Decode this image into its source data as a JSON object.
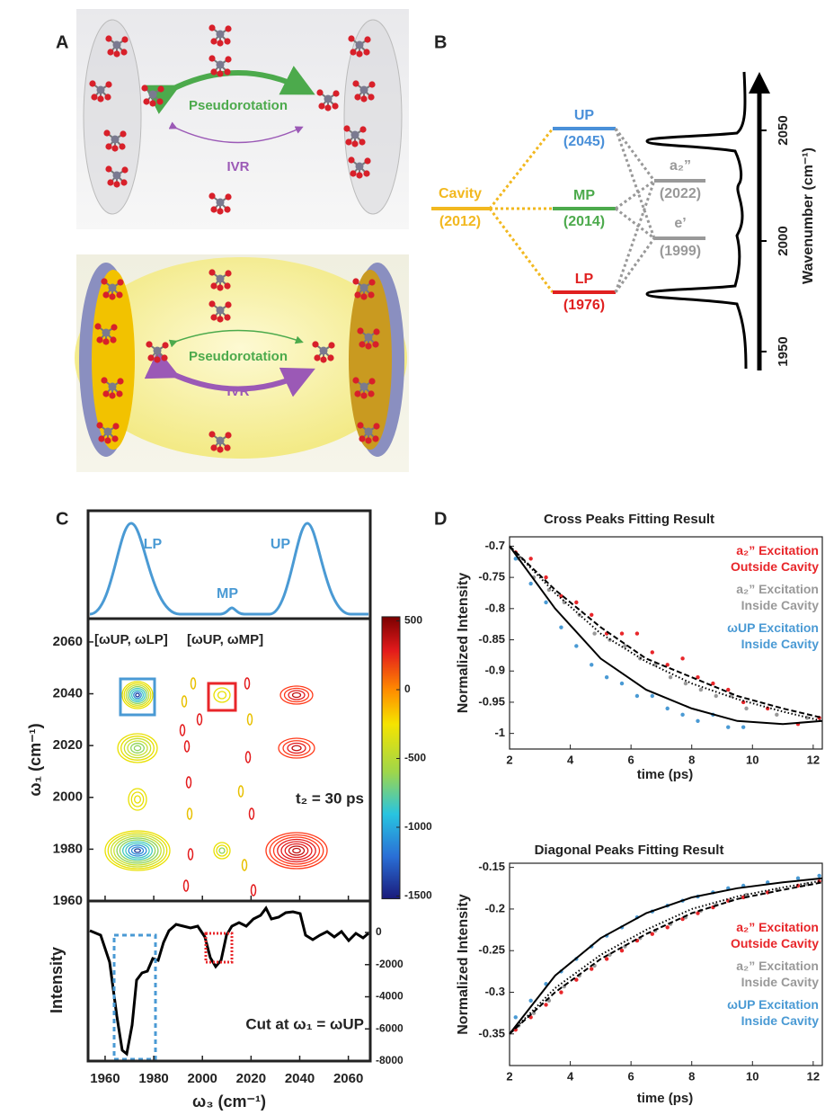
{
  "panel_a": {
    "label": "A",
    "top": {
      "upper_arrow": "Pseudorotation",
      "lower_arrow": "IVR"
    },
    "bottom": {
      "upper_arrow": "Pseudorotation",
      "lower_arrow": "IVR"
    }
  },
  "panel_b": {
    "label": "B",
    "cavity": {
      "name": "Cavity",
      "label": "(2012)",
      "color": "#f2b81f"
    },
    "polaritons": [
      {
        "name": "UP",
        "label": "(2045)",
        "color": "#4a90d9"
      },
      {
        "name": "MP",
        "label": "(2014)",
        "color": "#4caa4c"
      },
      {
        "name": "LP",
        "label": "(1976)",
        "color": "#e02020"
      }
    ],
    "modes": [
      {
        "name": "a₂”",
        "label": "(2022)",
        "color": "#999999"
      },
      {
        "name": "e’",
        "label": "(1999)",
        "color": "#999999"
      }
    ],
    "axis_label": "Wavenumber (cm⁻¹)",
    "ylim": [
      1950,
      2050
    ],
    "yticks": [
      1950,
      2000,
      2050
    ]
  },
  "panel_c": {
    "label": "C",
    "spectrum_labels": [
      "LP",
      "MP",
      "UP"
    ],
    "pair_labels": [
      "[ωUP, ωLP]",
      "[ωUP, ωMP]"
    ],
    "delay_label": "t₂ = 30 ps",
    "y_label": "ω₁ (cm⁻¹)",
    "x_label": "ω₃ (cm⁻¹)",
    "cut_label": "Cut at ω₁ = ωUP",
    "cut_y_label": "Intensity",
    "xlim": [
      1953,
      2069
    ],
    "xticks": [
      1960,
      1980,
      2000,
      2020,
      2040,
      2060
    ],
    "ylim": [
      1960,
      2069
    ],
    "yticks": [
      1960,
      1980,
      2000,
      2020,
      2040,
      2060
    ],
    "clim": [
      -1520,
      530
    ],
    "cticks": [
      500,
      0,
      -500,
      -1000,
      -1500
    ],
    "y2lim": [
      -8000,
      1960
    ],
    "y2ticks": [
      0,
      -2000,
      -4000,
      -6000,
      -8000
    ]
  },
  "panel_d": {
    "label": "D"
  },
  "chart_data": [
    {
      "type": "scatter",
      "title": "Cross Peaks Fitting Result",
      "x_label": "time (ps)",
      "y_label": "Normalized Intensity",
      "xlim": [
        2,
        12.3
      ],
      "xticks": [
        2,
        4,
        6,
        8,
        10,
        12
      ],
      "ylim": [
        -1.025,
        -0.685
      ],
      "yticks": [
        -0.7,
        -0.75,
        -0.8,
        -0.85,
        -0.9,
        -0.95,
        -1
      ],
      "series": [
        {
          "name": "a₂” Excitation Outside Cavity",
          "color": "#e8262a",
          "x": [
            2.2,
            2.7,
            3.2,
            3.7,
            4.2,
            4.7,
            5.2,
            5.7,
            6.2,
            6.7,
            7.2,
            7.7,
            8.2,
            8.7,
            9.2,
            9.7,
            10.5,
            11.5,
            12.2
          ],
          "values": [
            -0.71,
            -0.72,
            -0.75,
            -0.78,
            -0.79,
            -0.81,
            -0.84,
            -0.84,
            -0.84,
            -0.87,
            -0.89,
            -0.88,
            -0.91,
            -0.92,
            -0.93,
            -0.95,
            -0.96,
            -0.985,
            -0.975
          ]
        },
        {
          "name": "a₂” Excitation Inside Cavity",
          "color": "#999999",
          "x": [
            2.3,
            2.8,
            3.3,
            3.8,
            4.3,
            4.8,
            5.3,
            5.8,
            6.3,
            6.8,
            7.3,
            7.8,
            8.3,
            8.8,
            9.3,
            9.8,
            10.8,
            11.8
          ],
          "values": [
            -0.72,
            -0.75,
            -0.77,
            -0.79,
            -0.81,
            -0.84,
            -0.85,
            -0.86,
            -0.88,
            -0.89,
            -0.91,
            -0.92,
            -0.93,
            -0.94,
            -0.94,
            -0.96,
            -0.97,
            -0.975
          ]
        },
        {
          "name": "ωUP Excitation Inside Cavity",
          "color": "#4a9ad4",
          "x": [
            2.2,
            2.7,
            3.2,
            3.7,
            4.2,
            4.7,
            5.2,
            5.7,
            6.2,
            6.7,
            7.2,
            7.7,
            8.2,
            8.7,
            9.2,
            9.7
          ],
          "values": [
            -0.72,
            -0.76,
            -0.79,
            -0.83,
            -0.86,
            -0.89,
            -0.91,
            -0.92,
            -0.94,
            -0.94,
            -0.96,
            -0.97,
            -0.98,
            -0.97,
            -0.99,
            -0.99
          ]
        }
      ],
      "fits": [
        {
          "style": "solid",
          "color": "#000000",
          "x": [
            2,
            3.5,
            5,
            6.5,
            8,
            9.5,
            11,
            12.3
          ],
          "values": [
            -0.7,
            -0.8,
            -0.88,
            -0.93,
            -0.96,
            -0.98,
            -0.985,
            -0.98
          ]
        },
        {
          "style": "dashed",
          "color": "#000000",
          "x": [
            2,
            3.5,
            5,
            6.5,
            8,
            9.5,
            11,
            12.3
          ],
          "values": [
            -0.7,
            -0.77,
            -0.83,
            -0.88,
            -0.91,
            -0.94,
            -0.96,
            -0.975
          ]
        },
        {
          "style": "dotted",
          "color": "#000000",
          "x": [
            2,
            3.5,
            5,
            6.5,
            8,
            9.5,
            11,
            12.3
          ],
          "values": [
            -0.7,
            -0.775,
            -0.84,
            -0.885,
            -0.92,
            -0.945,
            -0.965,
            -0.98
          ]
        }
      ]
    },
    {
      "type": "scatter",
      "title": "Diagonal Peaks Fitting Result",
      "x_label": "time (ps)",
      "y_label": "Normalized Intensity",
      "xlim": [
        2,
        12.3
      ],
      "xticks": [
        2,
        4,
        6,
        8,
        10,
        12
      ],
      "ylim": [
        -0.388,
        -0.145
      ],
      "yticks": [
        -0.15,
        -0.2,
        -0.25,
        -0.3,
        -0.35
      ],
      "series": [
        {
          "name": "a₂” Excitation Outside Cavity",
          "color": "#e8262a",
          "x": [
            2.2,
            2.7,
            3.2,
            3.7,
            4.2,
            4.7,
            5.2,
            5.7,
            6.2,
            6.7,
            7.2,
            7.7,
            8.2,
            8.7,
            9.2,
            9.7,
            10.5,
            11.5,
            12.2
          ],
          "values": [
            -0.345,
            -0.33,
            -0.315,
            -0.3,
            -0.285,
            -0.272,
            -0.26,
            -0.25,
            -0.238,
            -0.23,
            -0.222,
            -0.212,
            -0.205,
            -0.198,
            -0.19,
            -0.186,
            -0.18,
            -0.172,
            -0.167
          ]
        },
        {
          "name": "a₂” Excitation Inside Cavity",
          "color": "#999999",
          "x": [
            2.3,
            2.8,
            3.3,
            3.8,
            4.3,
            4.8,
            5.3,
            5.8,
            6.3,
            6.8,
            7.3,
            7.8,
            8.3,
            8.8,
            9.3,
            9.8,
            10.8,
            11.8
          ],
          "values": [
            -0.34,
            -0.325,
            -0.31,
            -0.293,
            -0.28,
            -0.268,
            -0.255,
            -0.245,
            -0.235,
            -0.226,
            -0.218,
            -0.21,
            -0.202,
            -0.195,
            -0.189,
            -0.183,
            -0.177,
            -0.17
          ]
        },
        {
          "name": "ωUP Excitation Inside Cavity",
          "color": "#4a9ad4",
          "x": [
            2.2,
            2.7,
            3.2,
            3.7,
            4.2,
            4.7,
            5.2,
            5.7,
            6.2,
            6.7,
            7.2,
            7.7,
            8.2,
            8.7,
            9.2,
            9.7,
            10.5,
            11.5,
            12.2
          ],
          "values": [
            -0.33,
            -0.31,
            -0.29,
            -0.275,
            -0.26,
            -0.245,
            -0.232,
            -0.222,
            -0.21,
            -0.203,
            -0.196,
            -0.19,
            -0.185,
            -0.18,
            -0.175,
            -0.172,
            -0.168,
            -0.163,
            -0.16
          ]
        }
      ],
      "fits": [
        {
          "style": "solid",
          "color": "#000000",
          "x": [
            2,
            3.5,
            5,
            6.5,
            8,
            9.5,
            11,
            12.3
          ],
          "values": [
            -0.35,
            -0.28,
            -0.235,
            -0.205,
            -0.186,
            -0.175,
            -0.168,
            -0.163
          ]
        },
        {
          "style": "dashed",
          "color": "#000000",
          "x": [
            2,
            3.5,
            5,
            6.5,
            8,
            9.5,
            11,
            12.3
          ],
          "values": [
            -0.35,
            -0.3,
            -0.26,
            -0.23,
            -0.205,
            -0.188,
            -0.177,
            -0.168
          ]
        },
        {
          "style": "dotted",
          "color": "#000000",
          "x": [
            2,
            3.5,
            5,
            6.5,
            8,
            9.5,
            11,
            12.3
          ],
          "values": [
            -0.35,
            -0.295,
            -0.255,
            -0.225,
            -0.2,
            -0.185,
            -0.174,
            -0.166
          ]
        }
      ]
    }
  ]
}
